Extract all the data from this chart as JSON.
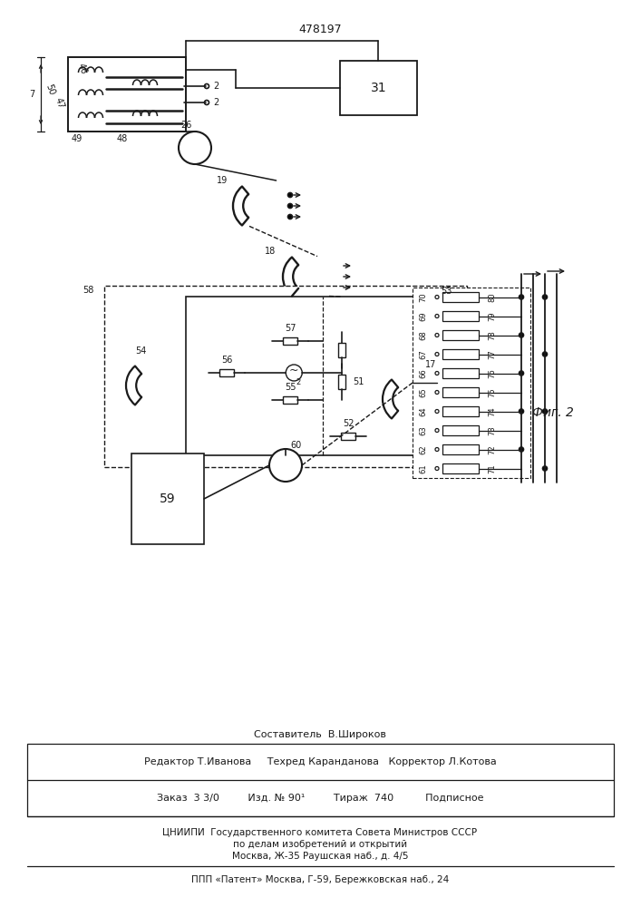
{
  "title": "478197",
  "fig2_label": "Фиг. 2",
  "bg_color": "#ffffff",
  "line_color": "#1a1a1a",
  "footer_lines": [
    "Составитель  В.Широков",
    "Редактор Т.Иванова     Техред Каранданова   Корректор Л.Котова",
    "Заказ  3 3/0         Изд. № 90¹         Тираж  740          Подписное",
    "ЦНИИПИ  Государственного комитета Совета Министров СССР",
    "по делам изобретений и открытий",
    "Москва, Ж-35 Раушская наб., д. 4/5",
    "ППП «Патент» Москва, Г-59, Бережковская наб., 24"
  ]
}
